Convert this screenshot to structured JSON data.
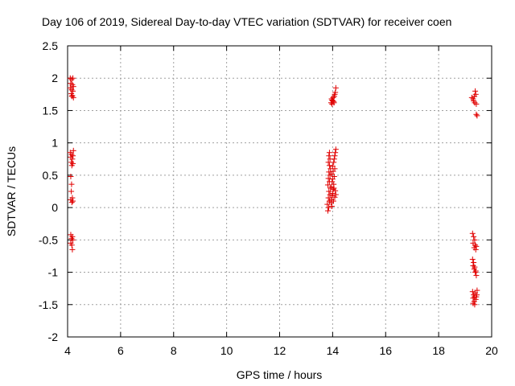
{
  "chart_data": {
    "type": "scatter",
    "title": "Day 106 of 2019, Sidereal Day-to-day VTEC variation (SDTVAR) for receiver coen",
    "xlabel": "GPS time / hours",
    "ylabel": "SDTVAR / TECUs",
    "xlim": [
      4,
      20
    ],
    "ylim": [
      -2,
      2.5
    ],
    "xticks": [
      4,
      6,
      8,
      10,
      12,
      14,
      16,
      18,
      20
    ],
    "yticks": [
      -2,
      -1.5,
      -1,
      -0.5,
      0,
      0.5,
      1,
      1.5,
      2,
      2.5
    ],
    "xtick_labels": [
      "4",
      "6",
      "8",
      "10",
      "12",
      "14",
      "16",
      "18",
      "20"
    ],
    "ytick_labels": [
      "-2",
      "-1.5",
      "-1",
      "-0.5",
      "0",
      "0.5",
      "1",
      "1.5",
      "2",
      "2.5"
    ],
    "grid": true,
    "marker": "+",
    "color": "#e00000",
    "series": [
      {
        "name": "SDTVAR",
        "points": [
          [
            4.1,
            2.0
          ],
          [
            4.15,
            1.98
          ],
          [
            4.2,
            2.0
          ],
          [
            4.12,
            1.92
          ],
          [
            4.18,
            1.9
          ],
          [
            4.22,
            1.87
          ],
          [
            4.1,
            1.85
          ],
          [
            4.15,
            1.82
          ],
          [
            4.2,
            1.8
          ],
          [
            4.14,
            1.76
          ],
          [
            4.18,
            1.73
          ],
          [
            4.22,
            1.7
          ],
          [
            4.16,
            1.72
          ],
          [
            4.1,
            0.85
          ],
          [
            4.15,
            0.82
          ],
          [
            4.2,
            0.8
          ],
          [
            4.12,
            0.78
          ],
          [
            4.18,
            0.75
          ],
          [
            4.14,
            0.7
          ],
          [
            4.2,
            0.68
          ],
          [
            4.16,
            0.65
          ],
          [
            4.22,
            0.88
          ],
          [
            4.12,
            0.48
          ],
          [
            4.15,
            0.36
          ],
          [
            4.14,
            0.25
          ],
          [
            4.18,
            0.15
          ],
          [
            4.12,
            0.12
          ],
          [
            4.2,
            0.1
          ],
          [
            4.16,
            0.08
          ],
          [
            4.12,
            -0.42
          ],
          [
            4.18,
            -0.45
          ],
          [
            4.15,
            -0.48
          ],
          [
            4.2,
            -0.5
          ],
          [
            4.12,
            -0.55
          ],
          [
            4.16,
            -0.58
          ],
          [
            4.18,
            -0.65
          ],
          [
            13.82,
            -0.05
          ],
          [
            13.85,
            0.0
          ],
          [
            13.8,
            0.05
          ],
          [
            13.88,
            0.1
          ],
          [
            13.84,
            0.15
          ],
          [
            13.9,
            0.2
          ],
          [
            13.86,
            0.25
          ],
          [
            13.92,
            0.3
          ],
          [
            13.82,
            0.35
          ],
          [
            13.88,
            0.4
          ],
          [
            13.84,
            0.45
          ],
          [
            13.9,
            0.5
          ],
          [
            13.86,
            0.55
          ],
          [
            13.92,
            0.6
          ],
          [
            13.88,
            0.65
          ],
          [
            13.84,
            0.7
          ],
          [
            13.9,
            0.75
          ],
          [
            13.86,
            0.8
          ],
          [
            13.88,
            0.85
          ],
          [
            13.95,
            0.12
          ],
          [
            13.98,
            0.18
          ],
          [
            14.0,
            0.22
          ],
          [
            14.02,
            0.28
          ],
          [
            13.96,
            0.32
          ],
          [
            14.04,
            0.36
          ],
          [
            13.98,
            0.4
          ],
          [
            14.0,
            0.44
          ],
          [
            14.06,
            0.48
          ],
          [
            13.96,
            0.52
          ],
          [
            14.02,
            0.56
          ],
          [
            14.08,
            0.6
          ],
          [
            14.0,
            0.64
          ],
          [
            14.04,
            0.7
          ],
          [
            14.06,
            0.75
          ],
          [
            14.08,
            0.8
          ],
          [
            14.1,
            0.85
          ],
          [
            14.12,
            0.9
          ],
          [
            14.05,
            0.3
          ],
          [
            14.1,
            0.26
          ],
          [
            14.12,
            0.2
          ],
          [
            13.94,
            0.08
          ],
          [
            13.97,
            0.02
          ],
          [
            14.03,
            0.1
          ],
          [
            14.08,
            0.16
          ],
          [
            13.94,
            1.62
          ],
          [
            13.98,
            1.6
          ],
          [
            14.0,
            1.65
          ],
          [
            13.96,
            1.68
          ],
          [
            14.02,
            1.7
          ],
          [
            14.04,
            1.64
          ],
          [
            14.06,
            1.72
          ],
          [
            14.08,
            1.75
          ],
          [
            14.1,
            1.78
          ],
          [
            14.12,
            1.85
          ],
          [
            13.98,
            1.66
          ],
          [
            14.05,
            1.62
          ],
          [
            19.25,
            1.7
          ],
          [
            19.3,
            1.68
          ],
          [
            19.35,
            1.72
          ],
          [
            19.32,
            1.65
          ],
          [
            19.4,
            1.75
          ],
          [
            19.38,
            1.8
          ],
          [
            19.36,
            1.62
          ],
          [
            19.42,
            1.6
          ],
          [
            19.45,
            1.42
          ],
          [
            19.42,
            1.44
          ],
          [
            19.28,
            -0.4
          ],
          [
            19.32,
            -0.45
          ],
          [
            19.36,
            -0.5
          ],
          [
            19.3,
            -0.55
          ],
          [
            19.38,
            -0.58
          ],
          [
            19.34,
            -0.62
          ],
          [
            19.4,
            -0.65
          ],
          [
            19.42,
            -0.6
          ],
          [
            19.28,
            -0.8
          ],
          [
            19.32,
            -0.85
          ],
          [
            19.3,
            -0.9
          ],
          [
            19.36,
            -0.92
          ],
          [
            19.34,
            -0.95
          ],
          [
            19.38,
            -1.0
          ],
          [
            19.42,
            -1.05
          ],
          [
            19.4,
            -0.98
          ],
          [
            19.28,
            -1.3
          ],
          [
            19.32,
            -1.35
          ],
          [
            19.3,
            -1.4
          ],
          [
            19.34,
            -1.45
          ],
          [
            19.36,
            -1.5
          ],
          [
            19.4,
            -1.42
          ],
          [
            19.42,
            -1.38
          ],
          [
            19.44,
            -1.35
          ],
          [
            19.38,
            -1.32
          ],
          [
            19.45,
            -1.28
          ],
          [
            19.3,
            -1.48
          ],
          [
            19.35,
            -1.38
          ]
        ]
      }
    ]
  }
}
